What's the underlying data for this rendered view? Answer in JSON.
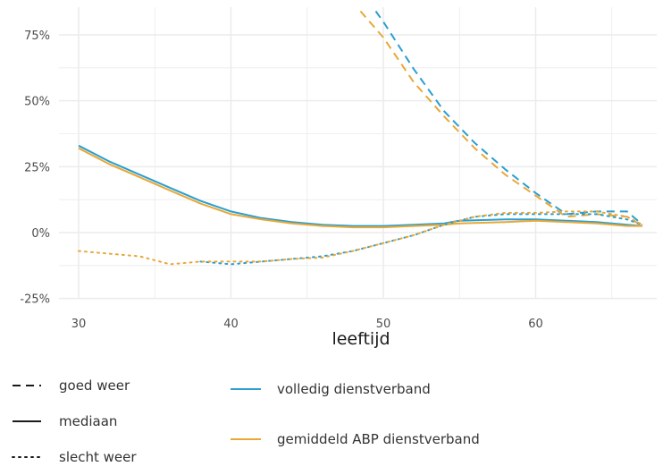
{
  "chart_data": {
    "type": "line",
    "title": "",
    "xlabel": "leeftijd",
    "ylabel": "",
    "xlim": [
      27,
      69
    ],
    "ylim": [
      -25,
      85
    ],
    "x_ticks": [
      30,
      40,
      50,
      60
    ],
    "x_tick_labels": [
      "30",
      "40",
      "50",
      "60"
    ],
    "y_ticks": [
      -25,
      0,
      25,
      50,
      75
    ],
    "y_tick_labels": [
      "-25%",
      "0%",
      "25%",
      "50%",
      "75%"
    ],
    "grid": true,
    "legend_position": "bottom",
    "colors": {
      "volledig": "#2a9fd0",
      "gemiddeld": "#e8a838",
      "grid": "#ebebeb"
    },
    "legend": {
      "linetype": [
        {
          "label": "goed weer",
          "style": "dashed"
        },
        {
          "label": "mediaan",
          "style": "solid"
        },
        {
          "label": "slecht weer",
          "style": "dotted"
        }
      ],
      "color": [
        {
          "label": "volledig dienstverband",
          "color": "#2a9fd0"
        },
        {
          "label": "gemiddeld ABP dienstverband",
          "color": "#e8a838"
        }
      ]
    },
    "series": [
      {
        "group": "volledig",
        "scenario": "mediaan",
        "color": "#2a9fd0",
        "style": "solid",
        "x": [
          30,
          32,
          34,
          36,
          38,
          40,
          42,
          44,
          46,
          48,
          50,
          52,
          54,
          55,
          58,
          60,
          62,
          64,
          66,
          67
        ],
        "y": [
          33,
          27,
          22,
          17,
          12,
          8,
          5.5,
          4,
          3,
          2.5,
          2.5,
          3,
          3.5,
          4.5,
          5,
          5,
          4.5,
          4,
          3,
          2.5
        ]
      },
      {
        "group": "gemiddeld",
        "scenario": "mediaan",
        "color": "#e8a838",
        "style": "solid",
        "x": [
          30,
          32,
          34,
          36,
          38,
          40,
          42,
          44,
          46,
          48,
          50,
          52,
          54,
          55,
          58,
          60,
          62,
          64,
          66,
          67
        ],
        "y": [
          32,
          26,
          21,
          16,
          11,
          7,
          5,
          3.5,
          2.5,
          2,
          2,
          2.5,
          3,
          3.5,
          4,
          4.5,
          4,
          3.5,
          2.5,
          2.5
        ]
      },
      {
        "group": "volledig",
        "scenario": "goed weer",
        "color": "#2a9fd0",
        "style": "dashed",
        "x": [
          49.5,
          50,
          52,
          54,
          56,
          58,
          60,
          62,
          64,
          66,
          67
        ],
        "y": [
          84,
          80,
          62,
          46,
          34,
          24,
          15,
          7,
          8,
          8,
          3
        ]
      },
      {
        "group": "gemiddeld",
        "scenario": "goed weer",
        "color": "#e8a838",
        "style": "dashed",
        "x": [
          48.5,
          50,
          52,
          54,
          56,
          58,
          60,
          62,
          64,
          66,
          67
        ],
        "y": [
          84,
          74,
          57,
          44,
          32,
          22,
          14,
          6,
          7,
          6,
          2.5
        ]
      },
      {
        "group": "volledig",
        "scenario": "slecht weer",
        "color": "#2a9fd0",
        "style": "dotted",
        "x": [
          38,
          40,
          42,
          44,
          46,
          48,
          50,
          52,
          54,
          56,
          58,
          60,
          62,
          64,
          66,
          67
        ],
        "y": [
          -11,
          -12,
          -11,
          -10,
          -9,
          -7,
          -4,
          -1,
          3,
          6,
          7,
          7,
          7,
          7,
          5,
          3
        ]
      },
      {
        "group": "gemiddeld",
        "scenario": "slecht weer",
        "color": "#e8a838",
        "style": "dotted",
        "x": [
          30,
          32,
          34,
          36,
          38,
          40,
          42,
          44,
          46,
          48,
          50,
          52,
          54,
          56,
          58,
          60,
          62,
          64,
          66,
          67
        ],
        "y": [
          -7,
          -8,
          -9,
          -12,
          -11,
          -11,
          -11,
          -10,
          -9.5,
          -7,
          -4,
          -1,
          3,
          6,
          7.5,
          7.5,
          8,
          8,
          6,
          3
        ]
      }
    ]
  }
}
